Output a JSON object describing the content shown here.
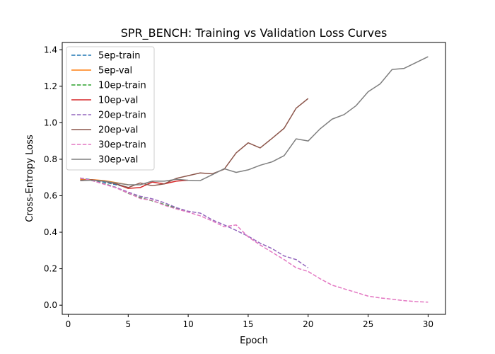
{
  "chart_data": {
    "type": "line",
    "title": "SPR_BENCH: Training vs Validation Loss Curves",
    "xlabel": "Epoch",
    "ylabel": "Cross-Entropy Loss",
    "xlim": [
      -0.5,
      31.45
    ],
    "ylim": [
      -0.05,
      1.44
    ],
    "xticks": [
      0,
      5,
      10,
      15,
      20,
      25,
      30
    ],
    "yticks": [
      0.0,
      0.2,
      0.4,
      0.6,
      0.8,
      1.0,
      1.2,
      1.4
    ],
    "xtick_labels": [
      "0",
      "5",
      "10",
      "15",
      "20",
      "25",
      "30"
    ],
    "ytick_labels": [
      "0.0",
      "0.2",
      "0.4",
      "0.6",
      "0.8",
      "1.0",
      "1.2",
      "1.4"
    ],
    "grid": false,
    "legend_position": "top-left",
    "series": [
      {
        "name": "5ep-train",
        "color": "#1f77b4",
        "dash": "dashed",
        "x": [
          1,
          2,
          3,
          4,
          5
        ],
        "y": [
          0.697,
          0.687,
          0.675,
          0.66,
          0.645
        ]
      },
      {
        "name": "5ep-val",
        "color": "#ff7f0e",
        "dash": "solid",
        "x": [
          1,
          2,
          3,
          4,
          5
        ],
        "y": [
          0.69,
          0.688,
          0.683,
          0.672,
          0.66
        ]
      },
      {
        "name": "10ep-train",
        "color": "#2ca02c",
        "dash": "dashed",
        "x": [
          1,
          2,
          3,
          4,
          5,
          6,
          7,
          8,
          9,
          10
        ],
        "y": [
          0.697,
          0.683,
          0.667,
          0.645,
          0.613,
          0.59,
          0.572,
          0.552,
          0.532,
          0.512
        ]
      },
      {
        "name": "10ep-val",
        "color": "#d62728",
        "dash": "solid",
        "x": [
          1,
          2,
          3,
          4,
          5,
          6,
          7,
          8,
          9,
          10
        ],
        "y": [
          0.683,
          0.687,
          0.68,
          0.665,
          0.64,
          0.645,
          0.675,
          0.665,
          0.68,
          0.685
        ]
      },
      {
        "name": "20ep-train",
        "color": "#9467bd",
        "dash": "dashed",
        "x": [
          1,
          2,
          3,
          4,
          5,
          6,
          7,
          8,
          9,
          10,
          11,
          12,
          13,
          14,
          15,
          16,
          17,
          18,
          19,
          20
        ],
        "y": [
          0.697,
          0.683,
          0.665,
          0.645,
          0.62,
          0.597,
          0.583,
          0.562,
          0.535,
          0.515,
          0.505,
          0.468,
          0.44,
          0.41,
          0.378,
          0.34,
          0.31,
          0.27,
          0.25,
          0.205
        ]
      },
      {
        "name": "20ep-val",
        "color": "#8c564b",
        "dash": "solid",
        "x": [
          1,
          2,
          3,
          4,
          5,
          6,
          7,
          8,
          9,
          10,
          11,
          12,
          13,
          14,
          15,
          16,
          17,
          18,
          19,
          20
        ],
        "y": [
          0.685,
          0.687,
          0.68,
          0.665,
          0.645,
          0.67,
          0.655,
          0.665,
          0.695,
          0.71,
          0.725,
          0.72,
          0.745,
          0.835,
          0.89,
          0.862,
          0.915,
          0.97,
          1.08,
          1.133
        ]
      },
      {
        "name": "30ep-train",
        "color": "#e377c2",
        "dash": "dashed",
        "x": [
          1,
          2,
          3,
          4,
          5,
          6,
          7,
          8,
          9,
          10,
          11,
          12,
          13,
          14,
          15,
          16,
          17,
          18,
          19,
          20,
          21,
          22,
          23,
          24,
          25,
          26,
          27,
          28,
          29,
          30
        ],
        "y": [
          0.697,
          0.683,
          0.663,
          0.643,
          0.615,
          0.585,
          0.575,
          0.548,
          0.528,
          0.51,
          0.49,
          0.462,
          0.43,
          0.44,
          0.375,
          0.33,
          0.29,
          0.25,
          0.205,
          0.185,
          0.145,
          0.11,
          0.09,
          0.07,
          0.05,
          0.04,
          0.033,
          0.025,
          0.02,
          0.017
        ]
      },
      {
        "name": "30ep-val",
        "color": "#7f7f7f",
        "dash": "solid",
        "x": [
          1,
          2,
          3,
          4,
          5,
          6,
          7,
          8,
          9,
          10,
          11,
          12,
          13,
          14,
          15,
          16,
          17,
          18,
          19,
          20,
          21,
          22,
          23,
          24,
          25,
          26,
          27,
          28,
          29,
          30
        ],
        "y": [
          0.683,
          0.685,
          0.68,
          0.67,
          0.66,
          0.66,
          0.68,
          0.68,
          0.69,
          0.685,
          0.683,
          0.715,
          0.748,
          0.728,
          0.742,
          0.767,
          0.786,
          0.82,
          0.912,
          0.9,
          0.967,
          1.02,
          1.045,
          1.094,
          1.17,
          1.213,
          1.292,
          1.298,
          1.33,
          1.362
        ]
      }
    ]
  }
}
